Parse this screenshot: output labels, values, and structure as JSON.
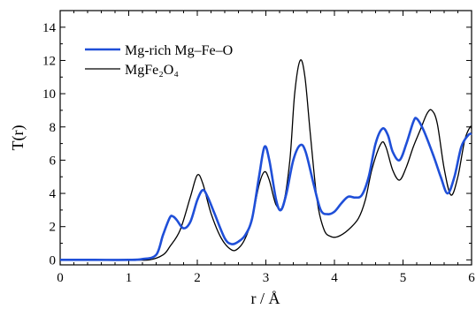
{
  "chart_data": {
    "type": "line",
    "xlabel": "r / Å",
    "ylabel": "T(r)",
    "xlim": [
      0,
      6
    ],
    "ylim": [
      -0.3,
      15
    ],
    "xticks": [
      0,
      1,
      2,
      3,
      4,
      5,
      6
    ],
    "yticks": [
      0,
      2,
      4,
      6,
      8,
      10,
      12,
      14
    ],
    "grid": false,
    "legend_position": "top-left",
    "series": [
      {
        "name": "Mg-rich Mg–Fe–O",
        "color": "#1f4fd8",
        "points": [
          [
            0,
            0
          ],
          [
            0.5,
            0
          ],
          [
            1.0,
            0
          ],
          [
            1.2,
            0.05
          ],
          [
            1.4,
            0.3
          ],
          [
            1.5,
            1.5
          ],
          [
            1.6,
            2.55
          ],
          [
            1.65,
            2.6
          ],
          [
            1.7,
            2.4
          ],
          [
            1.8,
            1.9
          ],
          [
            1.9,
            2.3
          ],
          [
            2.0,
            3.6
          ],
          [
            2.08,
            4.2
          ],
          [
            2.15,
            3.8
          ],
          [
            2.25,
            2.8
          ],
          [
            2.4,
            1.3
          ],
          [
            2.5,
            0.95
          ],
          [
            2.6,
            1.1
          ],
          [
            2.7,
            1.5
          ],
          [
            2.8,
            2.5
          ],
          [
            2.9,
            5.0
          ],
          [
            2.98,
            6.8
          ],
          [
            3.05,
            6.0
          ],
          [
            3.15,
            3.6
          ],
          [
            3.22,
            3.0
          ],
          [
            3.3,
            4.0
          ],
          [
            3.4,
            6.0
          ],
          [
            3.5,
            6.9
          ],
          [
            3.58,
            6.5
          ],
          [
            3.7,
            4.5
          ],
          [
            3.8,
            3.0
          ],
          [
            3.9,
            2.75
          ],
          [
            4.0,
            2.9
          ],
          [
            4.1,
            3.4
          ],
          [
            4.2,
            3.8
          ],
          [
            4.3,
            3.75
          ],
          [
            4.4,
            3.9
          ],
          [
            4.5,
            5.0
          ],
          [
            4.6,
            7.0
          ],
          [
            4.7,
            7.9
          ],
          [
            4.78,
            7.5
          ],
          [
            4.85,
            6.5
          ],
          [
            4.95,
            6.0
          ],
          [
            5.05,
            7.0
          ],
          [
            5.15,
            8.3
          ],
          [
            5.2,
            8.5
          ],
          [
            5.3,
            7.8
          ],
          [
            5.45,
            6.2
          ],
          [
            5.55,
            5.0
          ],
          [
            5.65,
            4.0
          ],
          [
            5.75,
            5.0
          ],
          [
            5.85,
            6.8
          ],
          [
            5.95,
            7.5
          ],
          [
            6.0,
            7.6
          ]
        ]
      },
      {
        "name": "MgFe₂O₄",
        "color": "#000000",
        "points": [
          [
            0,
            0
          ],
          [
            1.0,
            0
          ],
          [
            1.3,
            0
          ],
          [
            1.5,
            0.3
          ],
          [
            1.6,
            0.8
          ],
          [
            1.75,
            1.8
          ],
          [
            1.9,
            3.8
          ],
          [
            2.0,
            5.1
          ],
          [
            2.08,
            4.6
          ],
          [
            2.2,
            2.8
          ],
          [
            2.35,
            1.3
          ],
          [
            2.5,
            0.6
          ],
          [
            2.6,
            0.7
          ],
          [
            2.7,
            1.3
          ],
          [
            2.8,
            2.5
          ],
          [
            2.9,
            4.5
          ],
          [
            2.98,
            5.3
          ],
          [
            3.05,
            4.8
          ],
          [
            3.15,
            3.3
          ],
          [
            3.25,
            3.3
          ],
          [
            3.35,
            6.0
          ],
          [
            3.42,
            10.0
          ],
          [
            3.5,
            12.0
          ],
          [
            3.57,
            11.0
          ],
          [
            3.65,
            7.5
          ],
          [
            3.75,
            3.5
          ],
          [
            3.85,
            1.8
          ],
          [
            3.95,
            1.4
          ],
          [
            4.05,
            1.4
          ],
          [
            4.2,
            1.8
          ],
          [
            4.35,
            2.5
          ],
          [
            4.45,
            3.6
          ],
          [
            4.55,
            5.5
          ],
          [
            4.68,
            7.0
          ],
          [
            4.75,
            6.8
          ],
          [
            4.85,
            5.4
          ],
          [
            4.95,
            4.8
          ],
          [
            5.05,
            5.6
          ],
          [
            5.15,
            6.8
          ],
          [
            5.25,
            7.8
          ],
          [
            5.35,
            8.8
          ],
          [
            5.42,
            9.0
          ],
          [
            5.5,
            8.2
          ],
          [
            5.6,
            5.5
          ],
          [
            5.7,
            3.9
          ],
          [
            5.8,
            5.0
          ],
          [
            5.9,
            7.2
          ],
          [
            5.98,
            8.0
          ],
          [
            6.0,
            7.9
          ]
        ]
      }
    ]
  }
}
